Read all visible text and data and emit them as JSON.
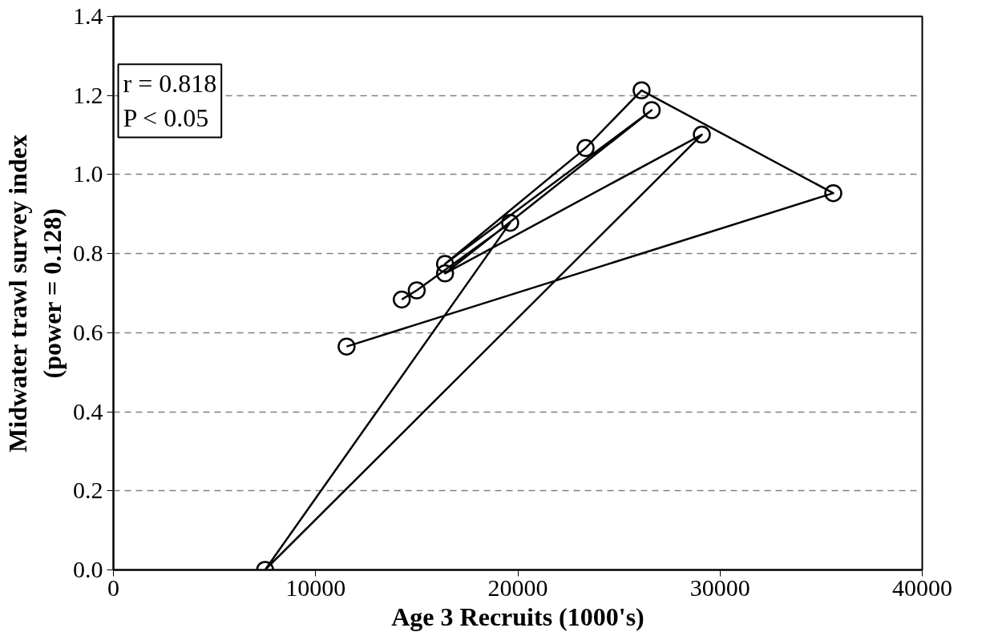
{
  "chart_data": {
    "type": "line",
    "xlabel": "Age 3 Recruits (1000's)",
    "ylabel": "Midwater trawl survey index\n(power = 0.128)",
    "annotations": [
      "r = 0.818",
      "P < 0.05"
    ],
    "series": [
      {
        "color": "#000000",
        "x": [
          11530,
          35600,
          26120,
          23350,
          16400,
          26620,
          16400,
          29100,
          7500,
          19620,
          15000,
          14260
        ],
        "values": [
          0.565,
          0.953,
          1.213,
          1.067,
          0.774,
          1.163,
          0.75,
          1.101,
          0.0,
          0.878,
          0.707,
          0.684
        ]
      }
    ],
    "xlim": [
      0,
      40000
    ],
    "ylim": [
      0,
      1.4
    ],
    "xticks": [
      0,
      10000,
      20000,
      30000,
      40000
    ],
    "yticks": [
      {
        "value": 0,
        "label": "0.0"
      },
      {
        "value": 0.2,
        "label": "0.2"
      },
      {
        "value": 0.4,
        "label": "0.4"
      },
      {
        "value": 0.6,
        "label": "0.6"
      },
      {
        "value": 0.8,
        "label": "0.8"
      },
      {
        "value": 1.0,
        "label": "1.0"
      },
      {
        "value": 1.2,
        "label": "1.2"
      },
      {
        "value": 1.4,
        "label": "1.4"
      }
    ],
    "grid": "y",
    "marker": "circle",
    "line_style": "solid"
  }
}
